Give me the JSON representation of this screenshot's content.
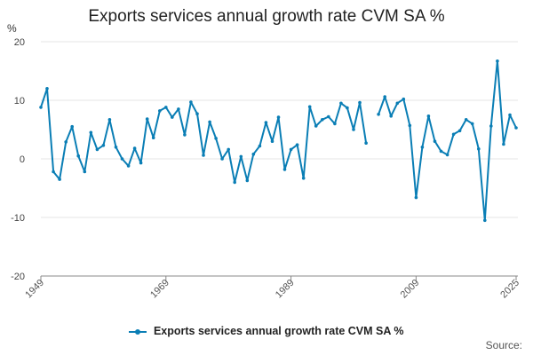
{
  "chart_data": {
    "type": "line",
    "title": "Exports services annual growth rate CVM SA %",
    "ylabel": "%",
    "ylim": [
      -20,
      20
    ],
    "yticks": [
      "20",
      "10",
      "0",
      "-10",
      "-20"
    ],
    "xlim": [
      1949,
      2025
    ],
    "xticks": [
      "1949",
      "1969",
      "1989",
      "2009",
      "2025"
    ],
    "grid": true,
    "legend_position": "bottom",
    "color": "#0a7eb5",
    "series": [
      {
        "name": "Exports services annual growth rate CVM SA %",
        "points": [
          [
            1949,
            8.8
          ],
          [
            1950,
            12.0
          ],
          [
            1951,
            -2.2
          ],
          [
            1952,
            -3.5
          ],
          [
            1953,
            2.9
          ],
          [
            1954,
            5.5
          ],
          [
            1955,
            0.5
          ],
          [
            1956,
            -2.2
          ],
          [
            1957,
            4.5
          ],
          [
            1958,
            1.6
          ],
          [
            1959,
            2.3
          ],
          [
            1960,
            6.7
          ],
          [
            1961,
            2.0
          ],
          [
            1962,
            0.0
          ],
          [
            1963,
            -1.2
          ],
          [
            1964,
            1.8
          ],
          [
            1965,
            -0.7
          ],
          [
            1966,
            6.8
          ],
          [
            1967,
            3.6
          ],
          [
            1968,
            8.2
          ],
          [
            1969,
            8.8
          ],
          [
            1970,
            7.1
          ],
          [
            1971,
            8.5
          ],
          [
            1972,
            4.1
          ],
          [
            1973,
            9.7
          ],
          [
            1974,
            7.7
          ],
          [
            1975,
            0.6
          ],
          [
            1976,
            6.3
          ],
          [
            1977,
            3.5
          ],
          [
            1978,
            0.0
          ],
          [
            1979,
            1.6
          ],
          [
            1980,
            -4.0
          ],
          [
            1981,
            0.4
          ],
          [
            1982,
            -3.7
          ],
          [
            1983,
            0.8
          ],
          [
            1984,
            2.2
          ],
          [
            1985,
            6.2
          ],
          [
            1986,
            3.0
          ],
          [
            1987,
            7.1
          ],
          [
            1988,
            -1.8
          ],
          [
            1989,
            1.6
          ],
          [
            1990,
            2.4
          ],
          [
            1991,
            -3.3
          ],
          [
            1992,
            8.9
          ],
          [
            1993,
            5.6
          ],
          [
            1994,
            6.7
          ],
          [
            1995,
            7.2
          ],
          [
            1996,
            6.0
          ],
          [
            1997,
            9.5
          ],
          [
            1998,
            8.7
          ],
          [
            1999,
            5.0
          ],
          [
            2000,
            9.6
          ],
          [
            2001,
            2.7
          ],
          [
            2003,
            7.6
          ],
          [
            2004,
            10.6
          ],
          [
            2005,
            7.3
          ],
          [
            2006,
            9.5
          ],
          [
            2007,
            10.2
          ],
          [
            2008,
            5.7
          ],
          [
            2009,
            -6.6
          ],
          [
            2010,
            2.0
          ],
          [
            2011,
            7.3
          ],
          [
            2012,
            3.0
          ],
          [
            2013,
            1.3
          ],
          [
            2014,
            0.7
          ],
          [
            2015,
            4.2
          ],
          [
            2016,
            4.8
          ],
          [
            2017,
            6.7
          ],
          [
            2018,
            6.0
          ],
          [
            2019,
            1.7
          ],
          [
            2020,
            -10.5
          ],
          [
            2021,
            5.6
          ],
          [
            2022,
            16.7
          ],
          [
            2023,
            2.5
          ],
          [
            2024,
            7.5
          ],
          [
            2025,
            5.3
          ]
        ]
      }
    ]
  },
  "legend": {
    "label": "Exports services annual growth rate CVM SA %"
  },
  "footer": {
    "source_label": "Source:"
  }
}
